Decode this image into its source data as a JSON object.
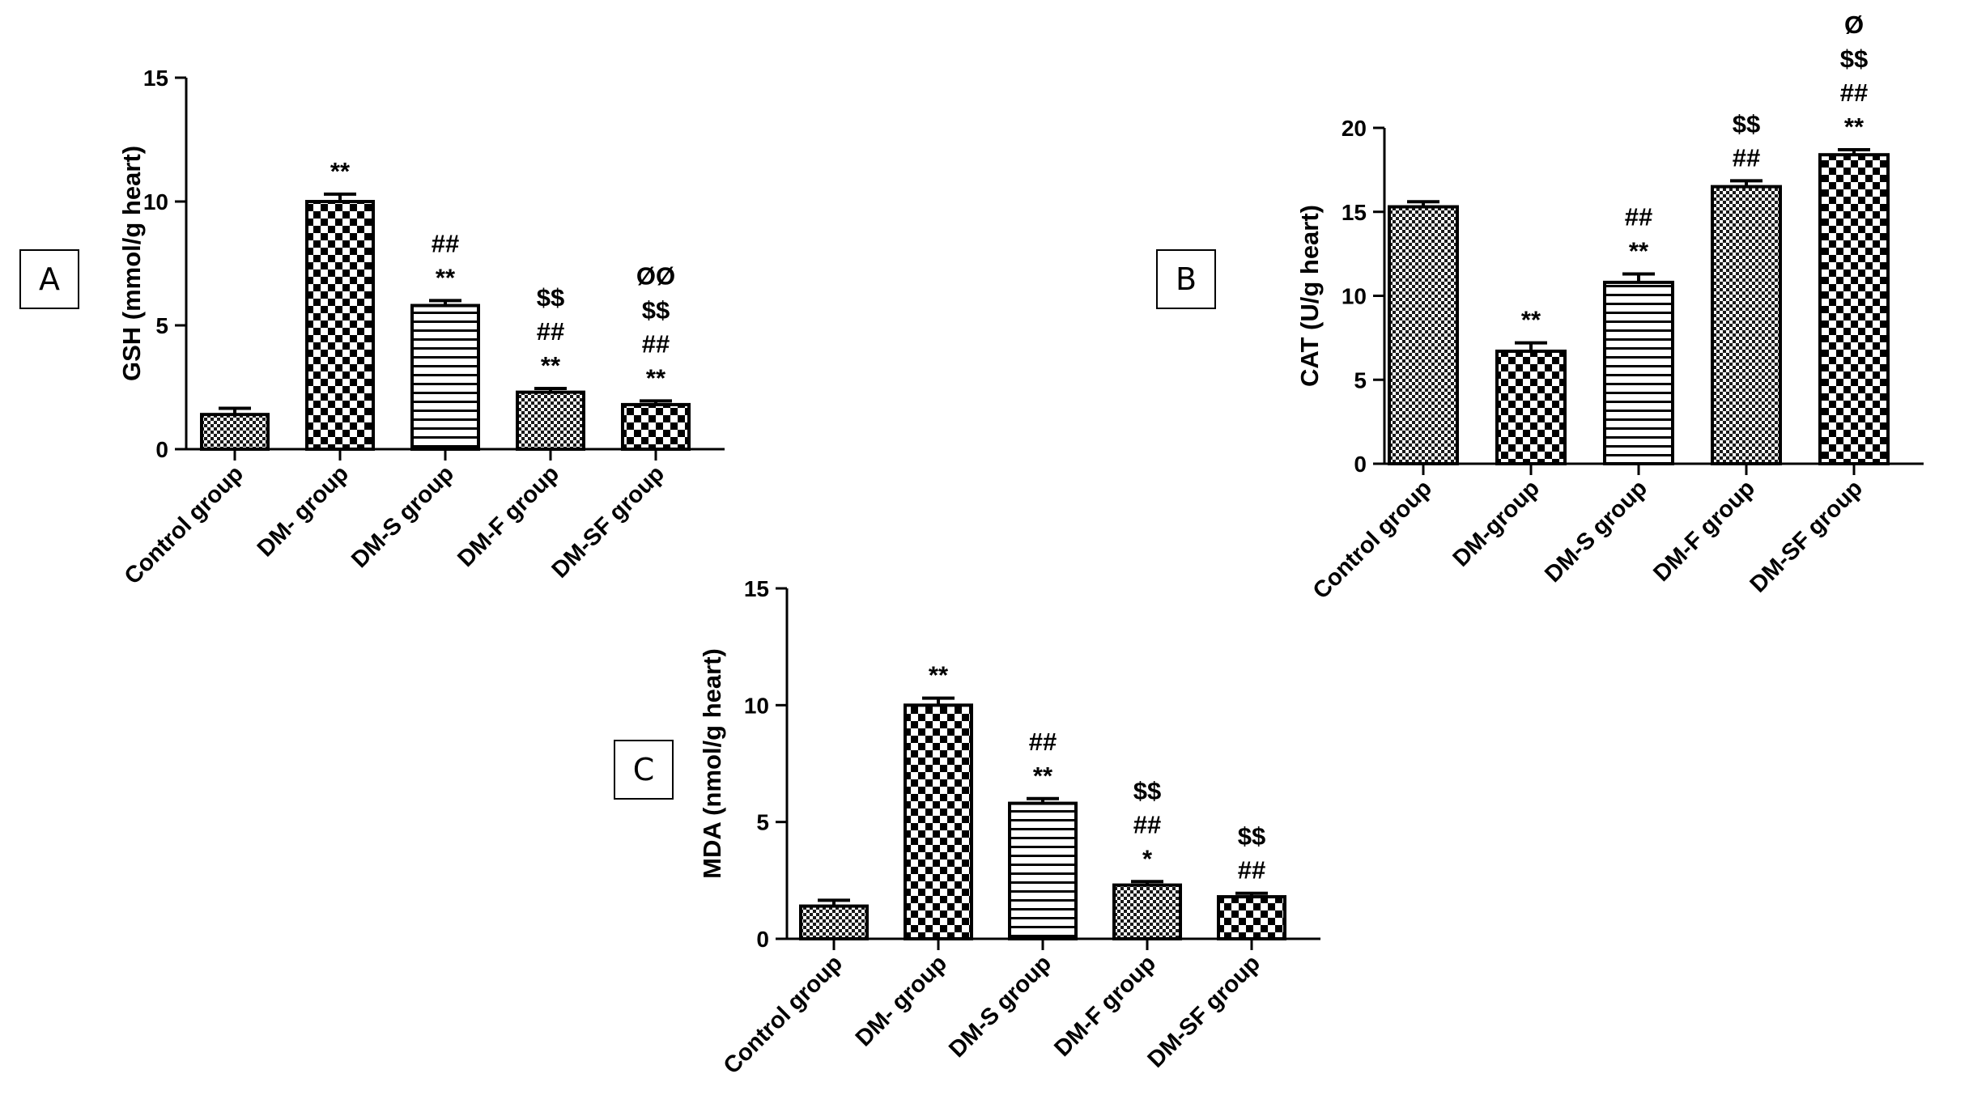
{
  "chart_data": [
    {
      "type": "bar",
      "panel_label": "A",
      "title": "",
      "xlabel": "",
      "ylabel": "GSH (mmol/g heart)",
      "ylim": [
        0,
        15
      ],
      "yticks": [
        "0",
        "5",
        "10",
        "15"
      ],
      "categories": [
        "Control group",
        "DM- group",
        "DM-S group",
        "DM-F group",
        "DM-SF group"
      ],
      "values": [
        1.4,
        10.0,
        5.8,
        2.3,
        1.8
      ],
      "errors": [
        0.25,
        0.3,
        0.2,
        0.15,
        0.15
      ],
      "patterns": [
        "fine",
        "checker",
        "hlines",
        "fine",
        "checker"
      ],
      "significance": [
        [],
        [
          "**"
        ],
        [
          "##",
          "**"
        ],
        [
          "$$",
          "##",
          "**"
        ],
        [
          "ØØ",
          "$$",
          "##",
          "**"
        ]
      ]
    },
    {
      "type": "bar",
      "panel_label": "B",
      "title": "",
      "xlabel": "",
      "ylabel": "CAT (U/g heart)",
      "ylim": [
        0,
        20
      ],
      "yticks": [
        "0",
        "5",
        "10",
        "15",
        "20"
      ],
      "categories": [
        "Control group",
        "DM-group",
        "DM-S group",
        "DM-F group",
        "DM-SF group"
      ],
      "values": [
        15.3,
        6.7,
        10.8,
        16.5,
        18.4
      ],
      "errors": [
        0.3,
        0.5,
        0.5,
        0.35,
        0.3
      ],
      "patterns": [
        "fine",
        "checker",
        "hlines",
        "fine",
        "checker"
      ],
      "significance": [
        [],
        [
          "**"
        ],
        [
          "##",
          "**"
        ],
        [
          "$$",
          "##"
        ],
        [
          "Ø",
          "$$",
          "##",
          "**"
        ]
      ]
    },
    {
      "type": "bar",
      "panel_label": "C",
      "title": "",
      "xlabel": "",
      "ylabel": "MDA (nmol/g heart)",
      "ylim": [
        0,
        15
      ],
      "yticks": [
        "0",
        "5",
        "10",
        "15"
      ],
      "categories": [
        "Control group",
        "DM- group",
        "DM-S group",
        "DM-F group",
        "DM-SF group"
      ],
      "values": [
        1.4,
        10.0,
        5.8,
        2.3,
        1.8
      ],
      "errors": [
        0.25,
        0.3,
        0.2,
        0.15,
        0.15
      ],
      "patterns": [
        "fine",
        "checker",
        "hlines",
        "fine",
        "checker"
      ],
      "significance": [
        [],
        [
          "**"
        ],
        [
          "##",
          "**"
        ],
        [
          "$$",
          "##",
          "*"
        ],
        [
          "$$",
          "##"
        ]
      ]
    }
  ]
}
